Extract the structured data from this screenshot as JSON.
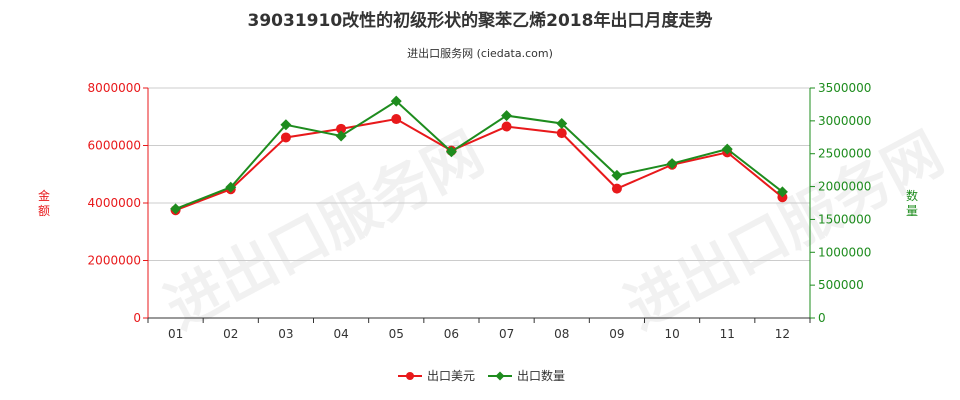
{
  "chart_data": {
    "type": "line",
    "title": "39031910改性的初级形状的聚苯乙烯2018年出口月度走势",
    "subtitle": "进出口服务网 (ciedata.com)",
    "watermark": "进出口服务网",
    "categories": [
      "01",
      "02",
      "03",
      "04",
      "05",
      "06",
      "07",
      "08",
      "09",
      "10",
      "11",
      "12"
    ],
    "series": [
      {
        "name": "出口美元",
        "axis": "left",
        "color": "#e8191b",
        "values": [
          3750000,
          4480000,
          6280000,
          6580000,
          6920000,
          5820000,
          6660000,
          6430000,
          4500000,
          5330000,
          5760000,
          4200000
        ]
      },
      {
        "name": "出口数量",
        "axis": "right",
        "color": "#1e8c1e",
        "values": [
          1660000,
          1990000,
          2940000,
          2770000,
          3300000,
          2530000,
          3080000,
          2960000,
          2170000,
          2350000,
          2570000,
          1920000
        ]
      }
    ],
    "y_left": {
      "label": "金额",
      "min": 0,
      "max": 8000000,
      "ticks": [
        "0",
        "2000000",
        "4000000",
        "6000000",
        "8000000"
      ],
      "color": "#e8191b"
    },
    "y_right": {
      "label": "数量",
      "min": 0,
      "max": 3500000,
      "ticks": [
        "0",
        "500000",
        "1000000",
        "1500000",
        "2000000",
        "2500000",
        "3000000",
        "3500000"
      ],
      "color": "#1e8c1e"
    },
    "grid": "horizontal",
    "legend_position": "bottom-center"
  }
}
